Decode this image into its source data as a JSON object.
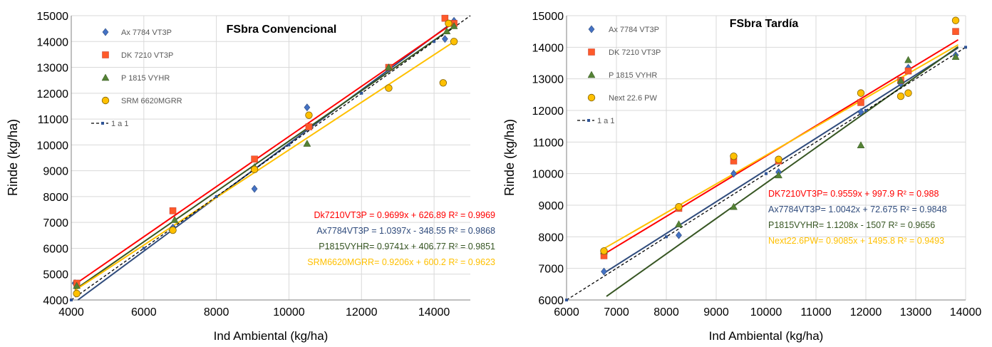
{
  "chart_data": [
    {
      "type": "scatter",
      "title": "FSbra Convencional",
      "xlabel": "Ind Ambiental (kg/ha)",
      "ylabel": "Rinde (kg/ha)",
      "xlim": [
        4000,
        15000
      ],
      "ylim": [
        4000,
        15000
      ],
      "xticks": [
        4000,
        6000,
        8000,
        10000,
        12000,
        14000
      ],
      "yticks": [
        4000,
        5000,
        6000,
        7000,
        8000,
        9000,
        10000,
        11000,
        12000,
        13000,
        14000,
        15000
      ],
      "xtick_labels": [
        "4000",
        "6000",
        "8000",
        "10000",
        "12000",
        "14000"
      ],
      "ytick_labels": [
        "4000",
        "5000",
        "6000",
        "7000",
        "8000",
        "9000",
        "10000",
        "11000",
        "12000",
        "13000",
        "14000",
        "15000"
      ],
      "grid": true,
      "legend_position": "top-left",
      "series": [
        {
          "name": "Ax 7784 VT3P",
          "marker": "diamond",
          "color": "#4472c4",
          "line_color": "#2f4b7c",
          "x": [
            4100,
            6800,
            9050,
            10500,
            12750,
            14300,
            14550
          ],
          "y": [
            4650,
            6800,
            8300,
            11450,
            12950,
            14100,
            14800
          ],
          "fit": {
            "slope": 1.0397,
            "intercept": -348.55,
            "x_range": [
              4000,
              14600
            ]
          }
        },
        {
          "name": "DK 7210 VT3P",
          "marker": "square",
          "color": "#ff5a2a",
          "line_color": "#ff0000",
          "x": [
            4150,
            6800,
            9050,
            10550,
            12750,
            14300,
            14550
          ],
          "y": [
            4650,
            7450,
            9450,
            10700,
            13000,
            14900,
            14700
          ],
          "fit": {
            "slope": 0.9699,
            "intercept": 626.89,
            "x_range": [
              4100,
              14600
            ]
          }
        },
        {
          "name": "P 1815 VYHR",
          "marker": "triangle",
          "color": "#548235",
          "line_color": "#375623",
          "x": [
            4150,
            6850,
            9050,
            10500,
            12750,
            14350,
            14550
          ],
          "y": [
            4550,
            7100,
            9150,
            10050,
            13000,
            14400,
            14600
          ],
          "fit": {
            "slope": 0.9741,
            "intercept": 406.77,
            "x_range": [
              4100,
              14600
            ]
          }
        },
        {
          "name": "SRM 6620MGRR",
          "marker": "circle",
          "color": "#ffc000",
          "line_color": "#ffc000",
          "x": [
            4150,
            6800,
            9050,
            10550,
            12750,
            14250,
            14400,
            14550
          ],
          "y": [
            4250,
            6700,
            9050,
            11150,
            12200,
            12400,
            14700,
            14000
          ],
          "fit": {
            "slope": 0.9206,
            "intercept": 600.2,
            "x_range": [
              4100,
              14600
            ]
          }
        },
        {
          "name": "1 a 1",
          "marker": "small-square",
          "color": "#2f5496",
          "line_color": "#000000",
          "dashed": true,
          "x": [
            4000,
            6000,
            8000,
            10000,
            12000,
            14000
          ],
          "y": [
            4000,
            6000,
            8000,
            10000,
            12000,
            14000
          ],
          "fit": {
            "slope": 1,
            "intercept": 0,
            "x_range": [
              4000,
              15000
            ]
          }
        }
      ],
      "annotations": [
        {
          "text": "Dk7210VT3P = 0.9699x + 626.89 R² = 0.9969",
          "color": "#ff0000"
        },
        {
          "text": "Ax7784VT3P = 1.0397x - 348.55 R² = 0.9868",
          "color": "#2f4b7c"
        },
        {
          "text": "P1815VYHR= 0.9741x + 406.77 R² = 0.9851",
          "color": "#375623"
        },
        {
          "text": "SRM6620MGRR= 0.9206x + 600.2 R² = 0.9623",
          "color": "#ffc000"
        }
      ]
    },
    {
      "type": "scatter",
      "title": "FSbra Tardía",
      "xlabel": "Ind Ambiental (kg/ha)",
      "ylabel": "Rinde (kg/ha)",
      "xlim": [
        6000,
        14000
      ],
      "ylim": [
        6000,
        15000
      ],
      "xticks": [
        6000,
        7000,
        8000,
        9000,
        10000,
        11000,
        12000,
        13000,
        14000
      ],
      "yticks": [
        6000,
        7000,
        8000,
        9000,
        10000,
        11000,
        12000,
        13000,
        14000,
        15000
      ],
      "xtick_labels": [
        "6000",
        "7000",
        "8000",
        "9000",
        "10000",
        "11000",
        "12000",
        "13000",
        "14000"
      ],
      "ytick_labels": [
        "6000",
        "7000",
        "8000",
        "9000",
        "10000",
        "11000",
        "12000",
        "13000",
        "14000",
        "15000"
      ],
      "grid": true,
      "legend_position": "top-left",
      "series": [
        {
          "name": "Ax 7784 VT3P",
          "marker": "diamond",
          "color": "#4472c4",
          "line_color": "#2f4b7c",
          "x": [
            6750,
            8250,
            9350,
            10250,
            11900,
            12700,
            12850,
            13800
          ],
          "y": [
            6900,
            8050,
            10000,
            10050,
            11950,
            12850,
            13350,
            13750
          ],
          "fit": {
            "slope": 1.0042,
            "intercept": 72.675,
            "x_range": [
              6750,
              13850
            ]
          }
        },
        {
          "name": "DK 7210 VT3P",
          "marker": "square",
          "color": "#ff5a2a",
          "line_color": "#ff0000",
          "x": [
            6750,
            8250,
            9350,
            10250,
            11900,
            12700,
            12850,
            13800
          ],
          "y": [
            7400,
            8900,
            10400,
            10400,
            12250,
            12950,
            13250,
            14500
          ],
          "fit": {
            "slope": 0.9559,
            "intercept": 997.9,
            "x_range": [
              6750,
              13850
            ]
          }
        },
        {
          "name": "P 1815 VYHR",
          "marker": "triangle",
          "color": "#548235",
          "line_color": "#375623",
          "x": [
            6750,
            8250,
            9350,
            10250,
            11900,
            12700,
            12850,
            13800
          ],
          "y": [
            7550,
            8400,
            8950,
            9950,
            10900,
            12950,
            13600,
            13700
          ],
          "fit": {
            "slope": 1.1208,
            "intercept": -1507,
            "x_range": [
              6800,
              13850
            ]
          }
        },
        {
          "name": "Next 22.6 PW",
          "marker": "circle",
          "color": "#ffc000",
          "line_color": "#ffc000",
          "x": [
            6750,
            8250,
            9350,
            10250,
            11900,
            12700,
            12850,
            13800
          ],
          "y": [
            7550,
            8950,
            10550,
            10450,
            12550,
            12450,
            12550,
            14850
          ],
          "fit": {
            "slope": 0.9085,
            "intercept": 1495.8,
            "x_range": [
              6750,
              13850
            ]
          }
        },
        {
          "name": "1 a 1",
          "marker": "small-square",
          "color": "#2f5496",
          "line_color": "#000000",
          "dashed": true,
          "x": [
            6000,
            8000,
            10000,
            12000,
            14000
          ],
          "y": [
            6000,
            8000,
            10000,
            12000,
            14000
          ],
          "fit": {
            "slope": 1,
            "intercept": 0,
            "x_range": [
              6000,
              14000
            ]
          }
        }
      ],
      "annotations": [
        {
          "text": "DK7210VT3P= 0.9559x + 997.9  R² = 0.988",
          "color": "#ff0000"
        },
        {
          "text": "Ax7784VT3P= 1.0042x + 72.675 R² = 0.9848",
          "color": "#2f4b7c"
        },
        {
          "text": "P1815VYHR= 1.1208x - 1507 R² = 0.9656",
          "color": "#375623"
        },
        {
          "text": "Next22.6PW= 0.9085x + 1495.8 R² = 0.9493",
          "color": "#ffc000"
        }
      ]
    }
  ]
}
